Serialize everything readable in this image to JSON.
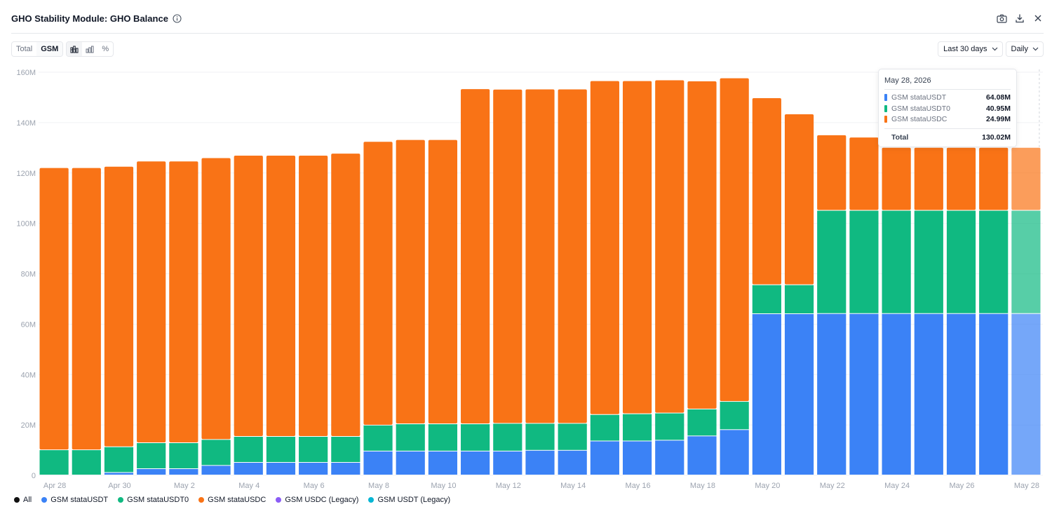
{
  "header": {
    "title": "GHO Stability Module: GHO Balance",
    "icons": [
      "info-icon",
      "camera-icon",
      "download-icon",
      "close-icon"
    ]
  },
  "toolbar": {
    "tabs": [
      {
        "label": "Total"
      },
      {
        "label": "GSM"
      }
    ],
    "active_tab": "GSM",
    "chart_modes": [
      "stacked-bar-icon",
      "bar-icon",
      "percent-icon"
    ],
    "percent_label": "%",
    "range_label": "Last 30 days",
    "interval_label": "Daily"
  },
  "colors": {
    "stataUSDT": "#3b82f6",
    "stataUSDT0": "#10b981",
    "stataUSDC": "#f97316",
    "usdcLegacy": "#8b5cf6",
    "usdtLegacy": "#06b6d4",
    "all": "#111111"
  },
  "tooltip": {
    "date": "May 28, 2026",
    "rows": [
      {
        "name": "GSM stataUSDT",
        "value": "64.08M",
        "color": "#3b82f6"
      },
      {
        "name": "GSM stataUSDT0",
        "value": "40.95M",
        "color": "#10b981"
      },
      {
        "name": "GSM stataUSDC",
        "value": "24.99M",
        "color": "#f97316"
      }
    ],
    "total_label": "Total",
    "total_value": "130.02M"
  },
  "legend": [
    {
      "name": "All",
      "color": "#111111"
    },
    {
      "name": "GSM stataUSDT",
      "color": "#3b82f6"
    },
    {
      "name": "GSM stataUSDT0",
      "color": "#10b981"
    },
    {
      "name": "GSM stataUSDC",
      "color": "#f97316"
    },
    {
      "name": "GSM USDC (Legacy)",
      "color": "#8b5cf6"
    },
    {
      "name": "GSM USDT (Legacy)",
      "color": "#06b6d4"
    }
  ],
  "chart_data": {
    "type": "bar",
    "stacked": true,
    "ylim": [
      0,
      160
    ],
    "yunit": "M",
    "yticks": [
      "0",
      "20M",
      "40M",
      "60M",
      "80M",
      "100M",
      "120M",
      "140M",
      "160M"
    ],
    "categories": [
      "Apr 28",
      "Apr 29",
      "Apr 30",
      "May 1",
      "May 2",
      "May 3",
      "May 4",
      "May 5",
      "May 6",
      "May 7",
      "May 8",
      "May 9",
      "May 10",
      "May 11",
      "May 12",
      "May 13",
      "May 14",
      "May 15",
      "May 16",
      "May 17",
      "May 18",
      "May 19",
      "May 20",
      "May 21",
      "May 22",
      "May 23",
      "May 24",
      "May 25",
      "May 26",
      "May 27",
      "May 28"
    ],
    "tick_labels": [
      "Apr 28",
      "",
      "Apr 30",
      "",
      "May 2",
      "",
      "May 4",
      "",
      "May 6",
      "",
      "May 8",
      "",
      "May 10",
      "",
      "May 12",
      "",
      "May 14",
      "",
      "May 16",
      "",
      "May 18",
      "",
      "May 20",
      "",
      "May 22",
      "",
      "May 24",
      "",
      "May 26",
      "",
      "May 28"
    ],
    "highlight_index": 30,
    "series": [
      {
        "name": "GSM stataUSDT",
        "values": [
          0,
          0,
          1,
          2.5,
          2.5,
          3.8,
          5,
          5,
          5,
          5,
          9.5,
          9.5,
          9.5,
          9.5,
          9.5,
          9.8,
          9.8,
          13.5,
          13.5,
          13.8,
          15.5,
          18,
          64,
          64,
          64.08,
          64.08,
          64.08,
          64.08,
          64.08,
          64.08,
          64.08
        ]
      },
      {
        "name": "GSM stataUSDT0",
        "values": [
          10,
          10,
          10.2,
          10.3,
          10.3,
          10.3,
          10.3,
          10.3,
          10.3,
          10.3,
          10.3,
          10.8,
          10.8,
          10.8,
          11,
          10.7,
          10.7,
          10.5,
          10.8,
          10.8,
          10.7,
          11.2,
          11.5,
          11.5,
          40.95,
          40.95,
          40.95,
          40.95,
          40.95,
          40.95,
          40.95
        ]
      },
      {
        "name": "GSM stataUSDC",
        "values": [
          112,
          112,
          111.3,
          111.8,
          111.8,
          111.8,
          111.6,
          111.6,
          111.6,
          112.4,
          112.6,
          112.8,
          112.8,
          133,
          132.6,
          132.7,
          132.7,
          132.5,
          132.2,
          132.2,
          130.2,
          128.4,
          74.2,
          67.8,
          29.97,
          29.07,
          24.99,
          24.99,
          24.99,
          24.99,
          24.99
        ]
      }
    ]
  }
}
